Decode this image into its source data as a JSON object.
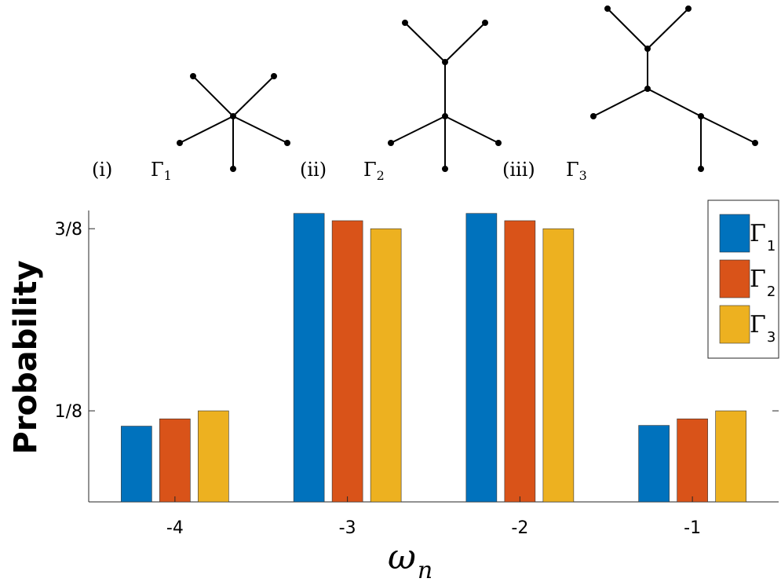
{
  "graphs": [
    {
      "roman": "(i)",
      "name": "Γ",
      "sub": "1"
    },
    {
      "roman": "(ii)",
      "name": "Γ",
      "sub": "2"
    },
    {
      "roman": "(iii)",
      "name": "Γ",
      "sub": "3"
    }
  ],
  "chart_data": {
    "type": "bar",
    "xlabel": "ω",
    "xlabel_sub": "n",
    "ylabel": "Probability",
    "categories": [
      "-4",
      "-3",
      "-2",
      "-1"
    ],
    "yticks": [
      {
        "value": 0.125,
        "label": "1/8"
      },
      {
        "value": 0.375,
        "label": "3/8"
      }
    ],
    "ylim": [
      0,
      0.4
    ],
    "grid": false,
    "legend_position": "top-right",
    "series": [
      {
        "name": "Γ",
        "sub": "1",
        "color": "#0072BD",
        "values": [
          0.104,
          0.396,
          0.396,
          0.105
        ]
      },
      {
        "name": "Γ",
        "sub": "2",
        "color": "#D95319",
        "values": [
          0.114,
          0.386,
          0.386,
          0.114
        ]
      },
      {
        "name": "Γ",
        "sub": "3",
        "color": "#EDB120",
        "values": [
          0.125,
          0.375,
          0.375,
          0.125
        ]
      }
    ]
  }
}
